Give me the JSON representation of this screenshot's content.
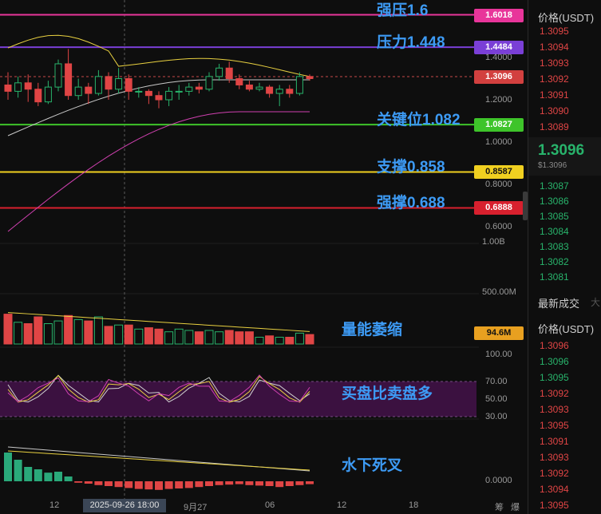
{
  "right_panel": {
    "order_book_header": "价格(USDT)",
    "asks": [
      "1.3095",
      "1.3094",
      "1.3093",
      "1.3092",
      "1.3091",
      "1.3090",
      "1.3089"
    ],
    "current_price": "1.3096",
    "current_price_usd": "$1.3096",
    "bids": [
      "1.3087",
      "1.3086",
      "1.3085",
      "1.3084",
      "1.3083",
      "1.3082",
      "1.3081"
    ],
    "trades_tab": "最新成交",
    "trades_tab_more": "大",
    "trades_header": "价格(USDT)",
    "trades": [
      {
        "p": "1.3096",
        "c": "red"
      },
      {
        "p": "1.3096",
        "c": "green"
      },
      {
        "p": "1.3095",
        "c": "green"
      },
      {
        "p": "1.3092",
        "c": "red"
      },
      {
        "p": "1.3093",
        "c": "red"
      },
      {
        "p": "1.3095",
        "c": "red"
      },
      {
        "p": "1.3091",
        "c": "red"
      },
      {
        "p": "1.3093",
        "c": "red"
      },
      {
        "p": "1.3092",
        "c": "red"
      },
      {
        "p": "1.3094",
        "c": "red"
      },
      {
        "p": "1.3095",
        "c": "red"
      }
    ]
  },
  "levels": [
    {
      "price": 1.6018,
      "label": "强压1.6",
      "badge": "1.6018",
      "color": "#e8359a"
    },
    {
      "price": 1.4484,
      "label": "压力1.448",
      "badge": "1.4484",
      "color": "#7a3fd6"
    },
    {
      "price": 1.0827,
      "label": "关键位1.082",
      "badge": "1.0827",
      "color": "#3ec42a"
    },
    {
      "price": 0.8587,
      "label": "支撑0.858",
      "badge": "0.8587",
      "color": "#f0d020"
    },
    {
      "price": 0.6888,
      "label": "强撑0.688",
      "badge": "0.6888",
      "color": "#d8202e"
    }
  ],
  "price_axis": {
    "ticks": [
      "1.4000",
      "1.2000",
      "1.0000",
      "0.8000",
      "0.6000"
    ],
    "current_badge": "1.3096",
    "current": 1.3096
  },
  "volume": {
    "label": "量能萎缩",
    "badge": "94.6M",
    "ticks": [
      "1.00B",
      "500.00M"
    ]
  },
  "rsi": {
    "label": "买盘比卖盘多",
    "ticks": [
      "100.00",
      "70.00",
      "50.00",
      "30.00"
    ]
  },
  "macd": {
    "label": "水下死叉",
    "ticks": [
      "0.0000"
    ]
  },
  "x_axis": {
    "ticks": [
      "12",
      "9月27",
      "06",
      "12",
      "18",
      "筹",
      "爆"
    ],
    "highlight": "2025-09-26 18:00"
  },
  "candles": [
    [
      1.27,
      1.24,
      1.33,
      1.2
    ],
    [
      1.24,
      1.28,
      1.31,
      1.21
    ],
    [
      1.28,
      1.25,
      1.32,
      1.19
    ],
    [
      1.25,
      1.19,
      1.28,
      1.17
    ],
    [
      1.19,
      1.26,
      1.29,
      1.18
    ],
    [
      1.26,
      1.37,
      1.39,
      1.24
    ],
    [
      1.37,
      1.22,
      1.44,
      1.2
    ],
    [
      1.22,
      1.26,
      1.3,
      1.2
    ],
    [
      1.26,
      1.23,
      1.28,
      1.18
    ],
    [
      1.23,
      1.31,
      1.34,
      1.22
    ],
    [
      1.31,
      1.25,
      1.33,
      1.2
    ],
    [
      1.25,
      1.3,
      1.35,
      1.23
    ],
    [
      1.3,
      1.24,
      1.32,
      1.2
    ],
    [
      1.24,
      1.24,
      1.26,
      1.21
    ],
    [
      1.24,
      1.22,
      1.25,
      1.18
    ],
    [
      1.22,
      1.2,
      1.24,
      1.16
    ],
    [
      1.2,
      1.24,
      1.26,
      1.17
    ],
    [
      1.24,
      1.24,
      1.27,
      1.2
    ],
    [
      1.24,
      1.26,
      1.28,
      1.22
    ],
    [
      1.26,
      1.25,
      1.28,
      1.23
    ],
    [
      1.25,
      1.31,
      1.33,
      1.24
    ],
    [
      1.31,
      1.35,
      1.37,
      1.29
    ],
    [
      1.35,
      1.3,
      1.38,
      1.28
    ],
    [
      1.3,
      1.27,
      1.32,
      1.25
    ],
    [
      1.27,
      1.25,
      1.29,
      1.24
    ],
    [
      1.25,
      1.26,
      1.28,
      1.24
    ],
    [
      1.26,
      1.23,
      1.27,
      1.21
    ],
    [
      1.23,
      1.25,
      1.27,
      1.17
    ],
    [
      1.25,
      1.23,
      1.27,
      1.21
    ],
    [
      1.23,
      1.31,
      1.33,
      1.22
    ],
    [
      1.31,
      1.3,
      1.32,
      1.29
    ]
  ],
  "vol_values": [
    0.22,
    0.16,
    0.15,
    0.2,
    0.15,
    0.17,
    0.21,
    0.18,
    0.17,
    0.2,
    0.13,
    0.14,
    0.14,
    0.11,
    0.12,
    0.11,
    0.09,
    0.11,
    0.1,
    0.09,
    0.1,
    0.09,
    0.1,
    0.09,
    0.09,
    0.05,
    0.06,
    0.05,
    0.05,
    0.08,
    0.07
  ],
  "macd_values": [
    0.06,
    0.045,
    0.03,
    0.025,
    0.018,
    0.02,
    0.01,
    -0.003,
    -0.005,
    -0.008,
    -0.01,
    -0.012,
    -0.014,
    -0.016,
    -0.017,
    -0.018,
    -0.016,
    -0.015,
    -0.014,
    -0.012,
    -0.01,
    -0.008,
    -0.007,
    -0.006,
    -0.008,
    -0.009,
    -0.01,
    -0.012,
    -0.01,
    -0.008,
    -0.006
  ]
}
